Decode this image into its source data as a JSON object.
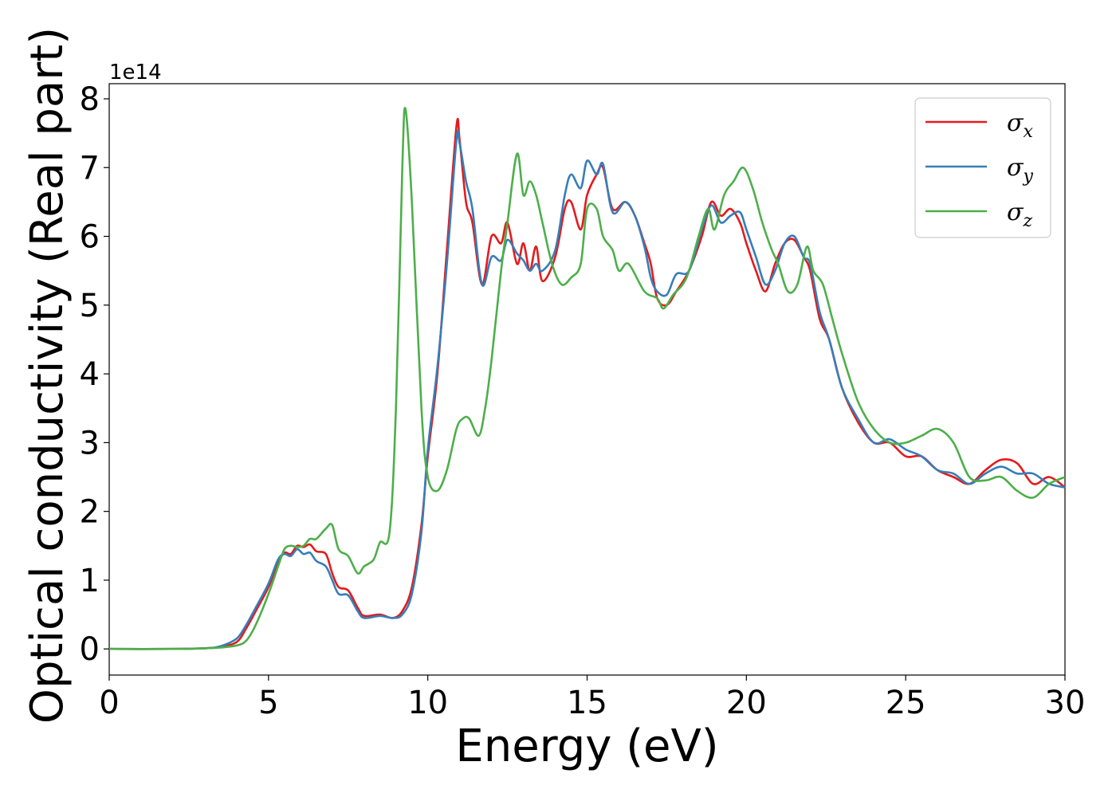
{
  "chart_data": {
    "type": "line",
    "xlabel": "Energy (eV)",
    "ylabel": "Optical conductivity (Real part)",
    "y_offset_label": "1e14",
    "xlim": [
      0,
      30
    ],
    "ylim": [
      -0.38,
      8.22
    ],
    "xticks": [
      0,
      5,
      10,
      15,
      20,
      25,
      30
    ],
    "yticks": [
      0,
      1,
      2,
      3,
      4,
      5,
      6,
      7,
      8
    ],
    "grid": false,
    "legend_position": "top-right",
    "series": [
      {
        "name": "σx",
        "legend_base": "σ",
        "legend_sub": "x",
        "color": "#e41a1c",
        "points": [
          [
            0,
            0
          ],
          [
            2,
            0
          ],
          [
            3,
            0.01
          ],
          [
            3.5,
            0.03
          ],
          [
            4,
            0.1
          ],
          [
            4.3,
            0.3
          ],
          [
            4.6,
            0.55
          ],
          [
            5,
            0.9
          ],
          [
            5.3,
            1.25
          ],
          [
            5.5,
            1.4
          ],
          [
            5.7,
            1.38
          ],
          [
            5.9,
            1.5
          ],
          [
            6.1,
            1.48
          ],
          [
            6.3,
            1.52
          ],
          [
            6.5,
            1.42
          ],
          [
            6.8,
            1.38
          ],
          [
            7.0,
            1.1
          ],
          [
            7.2,
            0.9
          ],
          [
            7.5,
            0.85
          ],
          [
            7.8,
            0.6
          ],
          [
            8.0,
            0.48
          ],
          [
            8.5,
            0.5
          ],
          [
            8.9,
            0.45
          ],
          [
            9.2,
            0.55
          ],
          [
            9.5,
            0.9
          ],
          [
            9.8,
            1.8
          ],
          [
            10.0,
            2.8
          ],
          [
            10.3,
            4.0
          ],
          [
            10.6,
            5.8
          ],
          [
            10.9,
            7.6
          ],
          [
            11.0,
            7.4
          ],
          [
            11.2,
            6.5
          ],
          [
            11.4,
            6.2
          ],
          [
            11.7,
            5.3
          ],
          [
            12.0,
            6.0
          ],
          [
            12.3,
            5.9
          ],
          [
            12.5,
            6.2
          ],
          [
            12.8,
            5.6
          ],
          [
            13.0,
            5.9
          ],
          [
            13.2,
            5.5
          ],
          [
            13.4,
            5.85
          ],
          [
            13.6,
            5.35
          ],
          [
            14.0,
            5.7
          ],
          [
            14.3,
            6.4
          ],
          [
            14.5,
            6.5
          ],
          [
            14.8,
            6.1
          ],
          [
            15.0,
            6.6
          ],
          [
            15.3,
            6.9
          ],
          [
            15.5,
            7.0
          ],
          [
            15.8,
            6.4
          ],
          [
            16.2,
            6.5
          ],
          [
            16.5,
            6.3
          ],
          [
            16.8,
            5.9
          ],
          [
            17.0,
            5.6
          ],
          [
            17.2,
            5.1
          ],
          [
            17.5,
            5.0
          ],
          [
            17.8,
            5.2
          ],
          [
            18.2,
            5.5
          ],
          [
            18.6,
            6.0
          ],
          [
            18.9,
            6.5
          ],
          [
            19.2,
            6.3
          ],
          [
            19.5,
            6.4
          ],
          [
            19.8,
            6.2
          ],
          [
            20.0,
            5.9
          ],
          [
            20.3,
            5.5
          ],
          [
            20.6,
            5.2
          ],
          [
            20.9,
            5.6
          ],
          [
            21.2,
            5.9
          ],
          [
            21.5,
            5.95
          ],
          [
            21.8,
            5.7
          ],
          [
            22.0,
            5.5
          ],
          [
            22.3,
            4.8
          ],
          [
            22.6,
            4.5
          ],
          [
            23.0,
            3.8
          ],
          [
            23.5,
            3.3
          ],
          [
            24.0,
            3.0
          ],
          [
            24.5,
            3.0
          ],
          [
            25.0,
            2.8
          ],
          [
            25.5,
            2.8
          ],
          [
            26.0,
            2.6
          ],
          [
            26.5,
            2.5
          ],
          [
            27.0,
            2.4
          ],
          [
            27.5,
            2.6
          ],
          [
            28.0,
            2.75
          ],
          [
            28.5,
            2.7
          ],
          [
            29.0,
            2.4
          ],
          [
            29.5,
            2.5
          ],
          [
            30,
            2.35
          ]
        ]
      },
      {
        "name": "σy",
        "legend_base": "σ",
        "legend_sub": "y",
        "color": "#377eb8",
        "points": [
          [
            0,
            0
          ],
          [
            2,
            0
          ],
          [
            3,
            0.01
          ],
          [
            3.5,
            0.04
          ],
          [
            4,
            0.15
          ],
          [
            4.3,
            0.35
          ],
          [
            4.6,
            0.6
          ],
          [
            5,
            0.95
          ],
          [
            5.3,
            1.3
          ],
          [
            5.5,
            1.38
          ],
          [
            5.7,
            1.35
          ],
          [
            5.9,
            1.45
          ],
          [
            6.1,
            1.38
          ],
          [
            6.3,
            1.4
          ],
          [
            6.5,
            1.28
          ],
          [
            6.8,
            1.2
          ],
          [
            7.0,
            1.0
          ],
          [
            7.2,
            0.8
          ],
          [
            7.5,
            0.78
          ],
          [
            7.8,
            0.55
          ],
          [
            8.0,
            0.45
          ],
          [
            8.5,
            0.48
          ],
          [
            8.9,
            0.45
          ],
          [
            9.2,
            0.5
          ],
          [
            9.5,
            0.8
          ],
          [
            9.8,
            1.7
          ],
          [
            10.0,
            2.9
          ],
          [
            10.3,
            4.1
          ],
          [
            10.6,
            5.6
          ],
          [
            10.9,
            7.4
          ],
          [
            11.0,
            7.35
          ],
          [
            11.2,
            6.8
          ],
          [
            11.4,
            6.4
          ],
          [
            11.7,
            5.3
          ],
          [
            12.0,
            5.7
          ],
          [
            12.3,
            5.65
          ],
          [
            12.5,
            5.95
          ],
          [
            12.8,
            5.75
          ],
          [
            13.0,
            5.65
          ],
          [
            13.2,
            5.5
          ],
          [
            13.4,
            5.6
          ],
          [
            13.6,
            5.5
          ],
          [
            14.0,
            5.8
          ],
          [
            14.3,
            6.6
          ],
          [
            14.5,
            6.9
          ],
          [
            14.8,
            6.7
          ],
          [
            15.0,
            7.1
          ],
          [
            15.3,
            6.9
          ],
          [
            15.5,
            7.05
          ],
          [
            15.8,
            6.35
          ],
          [
            16.2,
            6.5
          ],
          [
            16.5,
            6.3
          ],
          [
            16.8,
            5.85
          ],
          [
            17.0,
            5.4
          ],
          [
            17.2,
            5.2
          ],
          [
            17.5,
            5.15
          ],
          [
            17.8,
            5.45
          ],
          [
            18.2,
            5.5
          ],
          [
            18.6,
            6.1
          ],
          [
            18.9,
            6.45
          ],
          [
            19.2,
            6.2
          ],
          [
            19.5,
            6.3
          ],
          [
            19.8,
            6.35
          ],
          [
            20.0,
            6.1
          ],
          [
            20.3,
            5.7
          ],
          [
            20.6,
            5.3
          ],
          [
            20.9,
            5.5
          ],
          [
            21.2,
            5.9
          ],
          [
            21.5,
            6.0
          ],
          [
            21.8,
            5.7
          ],
          [
            22.0,
            5.6
          ],
          [
            22.3,
            4.9
          ],
          [
            22.6,
            4.5
          ],
          [
            23.0,
            3.8
          ],
          [
            23.5,
            3.35
          ],
          [
            24.0,
            3.0
          ],
          [
            24.5,
            3.05
          ],
          [
            25.0,
            2.9
          ],
          [
            25.5,
            2.8
          ],
          [
            26.0,
            2.6
          ],
          [
            26.5,
            2.55
          ],
          [
            27.0,
            2.4
          ],
          [
            27.5,
            2.55
          ],
          [
            28.0,
            2.65
          ],
          [
            28.5,
            2.55
          ],
          [
            29.0,
            2.55
          ],
          [
            29.5,
            2.4
          ],
          [
            30,
            2.35
          ]
        ]
      },
      {
        "name": "σz",
        "legend_base": "σ",
        "legend_sub": "z",
        "color": "#4daf4a",
        "points": [
          [
            0,
            0
          ],
          [
            2,
            0
          ],
          [
            3,
            0.01
          ],
          [
            3.5,
            0.02
          ],
          [
            4,
            0.05
          ],
          [
            4.3,
            0.12
          ],
          [
            4.6,
            0.35
          ],
          [
            5,
            0.8
          ],
          [
            5.3,
            1.2
          ],
          [
            5.5,
            1.45
          ],
          [
            5.7,
            1.5
          ],
          [
            5.9,
            1.48
          ],
          [
            6.1,
            1.5
          ],
          [
            6.3,
            1.6
          ],
          [
            6.5,
            1.6
          ],
          [
            6.8,
            1.75
          ],
          [
            7.0,
            1.8
          ],
          [
            7.2,
            1.45
          ],
          [
            7.5,
            1.35
          ],
          [
            7.8,
            1.1
          ],
          [
            8.0,
            1.2
          ],
          [
            8.3,
            1.3
          ],
          [
            8.5,
            1.55
          ],
          [
            8.8,
            1.7
          ],
          [
            9.0,
            3.5
          ],
          [
            9.2,
            7.0
          ],
          [
            9.3,
            7.85
          ],
          [
            9.5,
            6.5
          ],
          [
            9.8,
            3.5
          ],
          [
            10.0,
            2.5
          ],
          [
            10.3,
            2.3
          ],
          [
            10.6,
            2.6
          ],
          [
            10.9,
            3.2
          ],
          [
            11.1,
            3.35
          ],
          [
            11.3,
            3.35
          ],
          [
            11.6,
            3.1
          ],
          [
            11.8,
            3.5
          ],
          [
            12.0,
            4.2
          ],
          [
            12.3,
            5.5
          ],
          [
            12.5,
            6.2
          ],
          [
            12.8,
            7.2
          ],
          [
            13.0,
            6.6
          ],
          [
            13.2,
            6.8
          ],
          [
            13.4,
            6.6
          ],
          [
            13.6,
            6.2
          ],
          [
            13.9,
            5.6
          ],
          [
            14.2,
            5.3
          ],
          [
            14.5,
            5.4
          ],
          [
            14.8,
            5.6
          ],
          [
            15.0,
            6.4
          ],
          [
            15.3,
            6.4
          ],
          [
            15.5,
            6.0
          ],
          [
            15.8,
            5.8
          ],
          [
            16.0,
            5.5
          ],
          [
            16.3,
            5.6
          ],
          [
            16.8,
            5.2
          ],
          [
            17.2,
            5.1
          ],
          [
            17.4,
            4.95
          ],
          [
            17.7,
            5.15
          ],
          [
            18.0,
            5.3
          ],
          [
            18.2,
            5.5
          ],
          [
            18.5,
            6.0
          ],
          [
            18.8,
            6.4
          ],
          [
            19.0,
            6.1
          ],
          [
            19.3,
            6.6
          ],
          [
            19.6,
            6.8
          ],
          [
            19.9,
            7.0
          ],
          [
            20.2,
            6.7
          ],
          [
            20.5,
            6.2
          ],
          [
            20.8,
            5.8
          ],
          [
            21.0,
            5.6
          ],
          [
            21.3,
            5.2
          ],
          [
            21.6,
            5.3
          ],
          [
            21.9,
            5.85
          ],
          [
            22.1,
            5.5
          ],
          [
            22.4,
            5.3
          ],
          [
            22.7,
            4.8
          ],
          [
            23.0,
            4.3
          ],
          [
            23.5,
            3.6
          ],
          [
            24.0,
            3.2
          ],
          [
            24.5,
            3.0
          ],
          [
            25.0,
            3.0
          ],
          [
            25.5,
            3.1
          ],
          [
            26.0,
            3.2
          ],
          [
            26.5,
            3.0
          ],
          [
            27.0,
            2.5
          ],
          [
            27.5,
            2.45
          ],
          [
            28.0,
            2.5
          ],
          [
            28.5,
            2.3
          ],
          [
            29.0,
            2.2
          ],
          [
            29.5,
            2.4
          ],
          [
            30,
            2.5
          ]
        ]
      }
    ]
  }
}
